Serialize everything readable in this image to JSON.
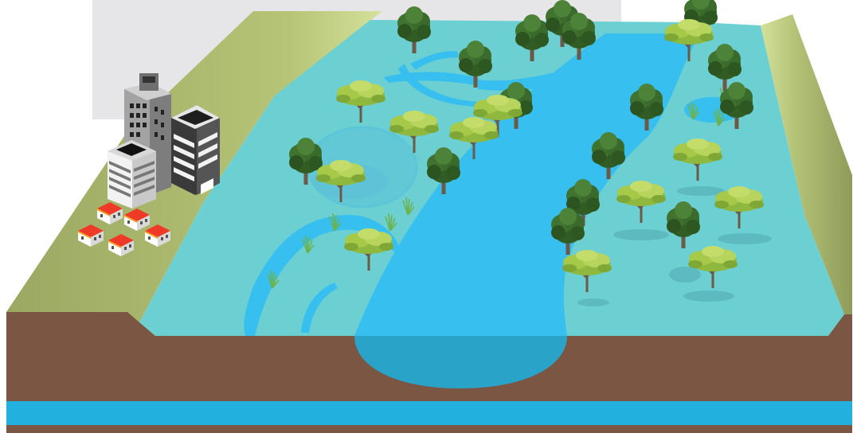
{
  "colors": {
    "background": "#ffffff",
    "backdrop_panel": "#e6e6e8",
    "floodplain": "#6ccfd1",
    "river_channel": "#36bfef",
    "pond_outline": "#5bc6d8",
    "river_section": "#2aa3c8",
    "levee_bank": "#a6b36a",
    "levee_highlight": "#c9d88c",
    "soil": "#7a5643",
    "aquifer": "#22b0de",
    "tree_dark": "#3b6b2c",
    "tree_light": "#a7c94a",
    "tree_trunk": "#6b5a46",
    "shadow": "#52a9b4",
    "building_grey": "#a3a3a3",
    "building_dark": "#3a3a3a",
    "building_white": "#f2f2f2",
    "roof_red": "#ee3a26",
    "roof_orange": "#f5a01e",
    "reeds": "#6cb24e"
  },
  "icons": {
    "tree_dark": "round-canopy-tree-icon",
    "tree_light": "spreading-canopy-tree-icon",
    "reeds": "reed-grass-icon",
    "tower": "office-tower-icon",
    "house": "small-house-icon"
  },
  "scene": {
    "elements": [
      "backdrop",
      "levee-left",
      "levee-right",
      "floodplain",
      "river-channel",
      "side-channel",
      "ponds",
      "trees",
      "reeds",
      "city",
      "soil-section",
      "aquifer-layer"
    ]
  }
}
